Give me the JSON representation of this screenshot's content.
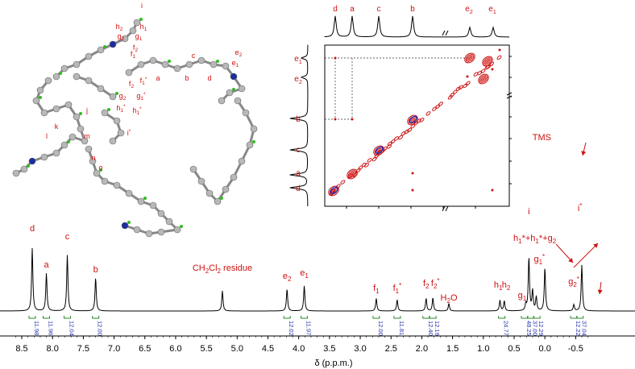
{
  "chart_data": {
    "type": "line",
    "title": "",
    "xlabel": "δ (p.p.m.)",
    "ylabel": "",
    "xlim": [
      8.85,
      -0.72
    ],
    "x_ticks": [
      "8.5",
      "8.0",
      "7.5",
      "7.0",
      "6.5",
      "6.0",
      "5.5",
      "5.0",
      "4.5",
      "4.0",
      "3.5",
      "3.0",
      "2.5",
      "2.0",
      "1.5",
      "1.0",
      "0.5",
      "0.0",
      "-0.5"
    ],
    "x_tick_values": [
      8.5,
      8.0,
      7.5,
      7.0,
      6.5,
      6.0,
      5.5,
      5.0,
      4.5,
      4.0,
      3.5,
      3.0,
      2.5,
      2.0,
      1.5,
      1.0,
      0.5,
      0.0,
      -0.5
    ],
    "peaks": [
      {
        "label": "d",
        "shift": 8.33,
        "height": 1.0
      },
      {
        "label": "a",
        "shift": 8.1,
        "height": 0.6
      },
      {
        "label": "c",
        "shift": 7.76,
        "height": 0.89
      },
      {
        "label": "b",
        "shift": 7.3,
        "height": 0.53
      },
      {
        "label": "CH2Cl2 residue",
        "shift": 5.24,
        "height": 0.32
      },
      {
        "label": "e2",
        "shift": 4.19,
        "height": 0.35
      },
      {
        "label": "e1",
        "shift": 3.91,
        "height": 0.4
      },
      {
        "label": "f1",
        "shift": 2.74,
        "height": 0.2
      },
      {
        "label": "f1*",
        "shift": 2.4,
        "height": 0.18
      },
      {
        "label": "f2",
        "shift": 1.93,
        "height": 0.2
      },
      {
        "label": "f2*",
        "shift": 1.82,
        "height": 0.21
      },
      {
        "label": "H2O",
        "shift": 1.56,
        "height": 0.12
      },
      {
        "label": "h1",
        "shift": 0.73,
        "height": 0.17
      },
      {
        "label": "h2",
        "shift": 0.66,
        "height": 0.16
      },
      {
        "label": "g1",
        "shift": 0.31,
        "height": 0.1
      },
      {
        "label": "i",
        "shift": 0.26,
        "height": 0.85
      },
      {
        "label": "h1*+h1*+g2",
        "shift": 0.2,
        "height": 0.32
      },
      {
        "label": "g1*",
        "shift": 0.14,
        "height": 0.22
      },
      {
        "label": "TMS",
        "shift": 0.0,
        "height": 0.69
      },
      {
        "label": "g2*",
        "shift": -0.47,
        "height": 0.1
      },
      {
        "label": "i*",
        "shift": -0.6,
        "height": 0.73
      }
    ],
    "integrations": [
      {
        "shift": 8.33,
        "value": "11.98"
      },
      {
        "shift": 8.1,
        "value": "11.96"
      },
      {
        "shift": 7.76,
        "value": "12.04"
      },
      {
        "shift": 7.3,
        "value": "12.00"
      },
      {
        "shift": 4.19,
        "value": "12.02"
      },
      {
        "shift": 3.91,
        "value": "11.97"
      },
      {
        "shift": 2.74,
        "value": "12.00"
      },
      {
        "shift": 2.4,
        "value": "11.81"
      },
      {
        "shift": 1.93,
        "value": "12.40"
      },
      {
        "shift": 1.82,
        "value": "12.19"
      },
      {
        "shift": 0.7,
        "value": "24.77"
      },
      {
        "shift": 0.33,
        "value": "48.25"
      },
      {
        "shift": 0.23,
        "value": "37.00"
      },
      {
        "shift": 0.13,
        "value": "12.29"
      },
      {
        "shift": -0.47,
        "value": "12.22"
      },
      {
        "shift": -0.57,
        "value": "37.04"
      }
    ],
    "display_labels": {
      "TMS": "TMS",
      "H2O_main": "H",
      "H2O_sub": "2",
      "H2O_end": "O",
      "ch2cl2_a": "CH",
      "ch2cl2_sub1": "2",
      "ch2cl2_b": "Cl",
      "ch2cl2_sub2": "2",
      "ch2cl2_c": " residue",
      "sum_label": "h",
      "sum_parts": [
        "h",
        "1",
        "*+h",
        "1",
        "*+g",
        "2"
      ]
    },
    "cosy": {
      "top_labels": [
        "d",
        "a",
        "c",
        "b",
        "e2",
        "e1"
      ],
      "left_labels": [
        "e1",
        "e2",
        "b",
        "c",
        "a",
        "d"
      ]
    },
    "molecule_labels": [
      "i",
      "h1",
      "h2",
      "g2",
      "g1",
      "f2",
      "f1",
      "a",
      "b",
      "c",
      "d",
      "e1",
      "e2",
      "f1*",
      "f2",
      "g1*",
      "g2",
      "h1*",
      "h1*",
      "i*",
      "j",
      "k",
      "l",
      "m",
      "n",
      "o"
    ],
    "colors": {
      "peak_label": "#d01010",
      "integration": "#2233aa",
      "bracket": "#2a8a2a",
      "cosy_red": "#cc1111",
      "cosy_blue": "#1133cc",
      "atom_N": "#1a2ea0",
      "atom_H": "#33bb22",
      "atom_C": "#b8b8b8"
    }
  }
}
